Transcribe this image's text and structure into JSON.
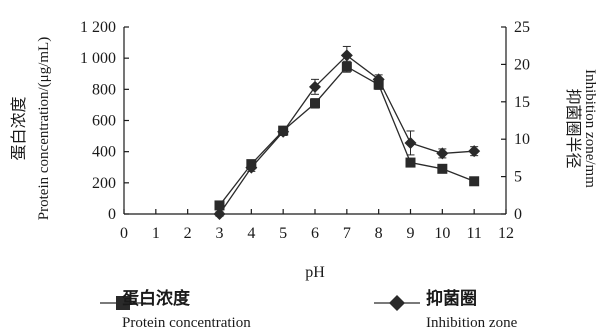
{
  "chart_data": {
    "type": "line",
    "xlabel": "pH",
    "ylabel_left_cn": "蛋白浓度",
    "ylabel_left_en": "Protein concentration/(μg/mL)",
    "ylabel_right_cn": "抑菌圈半径",
    "ylabel_right_en": "Inhibition zone/mm",
    "xlim": [
      0,
      12
    ],
    "ylim_left": [
      0,
      1200
    ],
    "ylim_right": [
      0,
      25
    ],
    "x_ticks": [
      "0",
      "1",
      "2",
      "3",
      "4",
      "5",
      "6",
      "7",
      "8",
      "9",
      "10",
      "11",
      "12"
    ],
    "y_left_ticks": [
      "0",
      "200",
      "400",
      "600",
      "800",
      "1 000",
      "1 200"
    ],
    "y_right_ticks": [
      "0",
      "5",
      "10",
      "15",
      "20",
      "25"
    ],
    "grid": false,
    "series": [
      {
        "name_cn": "蛋白浓度",
        "name_en": "Protein concentration",
        "axis": "left",
        "marker": "square",
        "x": [
          3,
          4,
          5,
          6,
          7,
          8,
          9,
          10,
          11
        ],
        "values": [
          55,
          320,
          535,
          710,
          945,
          830,
          330,
          290,
          210
        ],
        "errors": [
          15,
          20,
          20,
          30,
          35,
          30,
          25,
          20,
          20
        ]
      },
      {
        "name_cn": "抑菌圈",
        "name_en": "Inhibition zone",
        "axis": "right",
        "marker": "diamond",
        "x": [
          3,
          4,
          5,
          6,
          7,
          8,
          9,
          10,
          11
        ],
        "values": [
          0,
          6.2,
          11,
          17,
          21.2,
          18,
          9.5,
          8.1,
          8.4
        ],
        "errors": [
          0.3,
          0.5,
          0.5,
          1.0,
          1.2,
          0.6,
          1.6,
          0.6,
          0.6
        ]
      }
    ],
    "legend_position": "bottom"
  }
}
